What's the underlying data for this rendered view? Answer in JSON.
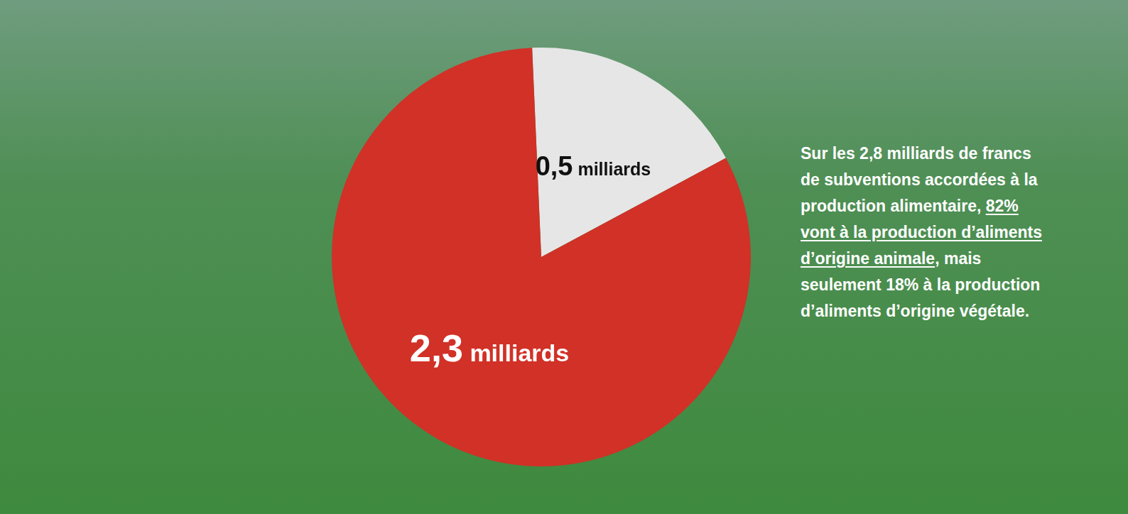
{
  "chart_data": {
    "type": "pie",
    "values": [
      0.5,
      2.3
    ],
    "value_labels": [
      "0,5 milliards",
      "2,3 milliards"
    ],
    "colors": [
      "#e6e6e6",
      "#d13127"
    ],
    "data_labels": true,
    "annotation": [
      "Sur les 2,8 milliards de francs de subventions accordées à la production alimentaire, ",
      "82% vont à la production d’aliments d’origine animale",
      ", mais seulement 18% à la production d’aliments d’origine végétale."
    ]
  }
}
